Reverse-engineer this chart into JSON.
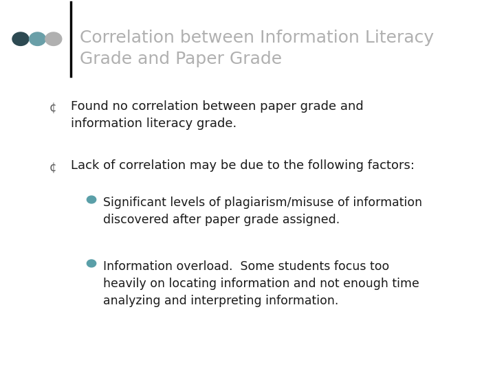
{
  "title_line1": "Correlation between Information Literacy",
  "title_line2": "Grade and Paper Grade",
  "title_color": "#b0b0b0",
  "title_fontsize": 18,
  "background_color": "#ffffff",
  "vertical_bar_color": "#000000",
  "dot_colors": [
    "#2d4a52",
    "#6a9fa8",
    "#b0b0b0"
  ],
  "bullet1_text": "Found no correlation between paper grade and\ninformation literacy grade.",
  "bullet2_text": "Lack of correlation may be due to the following factors:",
  "sub_bullet1_text": "Significant levels of plagiarism/misuse of information\ndiscovered after paper grade assigned.",
  "sub_bullet2_text": "Information overload.  Some students focus too\nheavily on locating information and not enough time\nanalyzing and interpreting information.",
  "main_bullet_color": "#5a5a5a",
  "sub_bullet_color": "#5a9fa8",
  "text_color": "#1a1a1a",
  "main_fontsize": 13,
  "sub_fontsize": 12.5
}
